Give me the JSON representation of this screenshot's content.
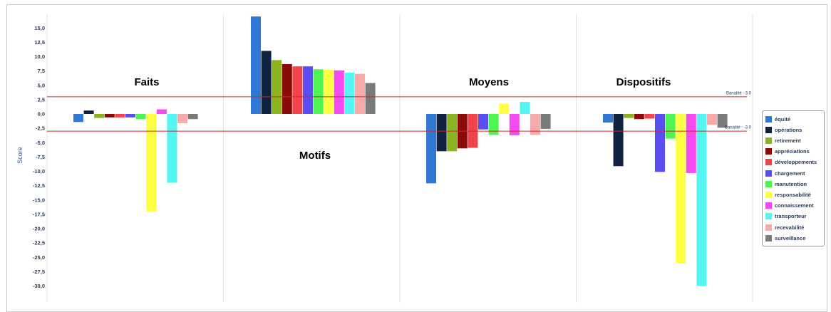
{
  "chart_data": {
    "type": "bar",
    "ylabel": "Score",
    "ylim": [
      -30,
      17
    ],
    "yticks": [
      "15,0",
      "12,5",
      "10,0",
      "7,5",
      "5,0",
      "2,5",
      "0,0",
      "-2,5",
      "-5,0",
      "-7,5",
      "-10,0",
      "-12,5",
      "-15,0",
      "-17,5",
      "-20,0",
      "-22,5",
      "-25,0",
      "-27,5",
      "-30,0"
    ],
    "ytick_values": [
      15,
      12.5,
      10,
      7.5,
      5,
      2.5,
      0,
      -2.5,
      -5,
      -7.5,
      -10,
      -12.5,
      -15,
      -17.5,
      -20,
      -22.5,
      -25,
      -27.5,
      -30
    ],
    "categories": [
      "Faits",
      "Motifs",
      "Moyens",
      "Dispositifs"
    ],
    "grid": "vertical",
    "legend_position": "right",
    "reference_lines": [
      {
        "label": "Banalité : 3.0",
        "value": 3.0,
        "color": "#cc2a2a"
      },
      {
        "label": "Banalité : -3.0",
        "value": -3.0,
        "color": "#cc2a2a"
      }
    ],
    "series": [
      {
        "name": "équité",
        "color": "#3178d4",
        "values": [
          -1.4,
          17.0,
          -12.1,
          -1.5
        ]
      },
      {
        "name": "opérations",
        "color": "#0f2340",
        "values": [
          0.6,
          11.0,
          -6.5,
          -9.1
        ]
      },
      {
        "name": "retirement",
        "color": "#8bb51f",
        "values": [
          -0.7,
          9.4,
          -6.5,
          -0.7
        ]
      },
      {
        "name": "appréciations",
        "color": "#8a0a0a",
        "values": [
          -0.6,
          8.7,
          -6.0,
          -0.9
        ]
      },
      {
        "name": "développements",
        "color": "#f2434b",
        "values": [
          -0.6,
          8.3,
          -5.9,
          -0.8
        ]
      },
      {
        "name": "chargement",
        "color": "#5a4ef2",
        "values": [
          -0.6,
          8.3,
          -2.7,
          -10.1
        ]
      },
      {
        "name": "manutention",
        "color": "#4ef552",
        "values": [
          -0.9,
          7.8,
          -3.6,
          -4.3
        ]
      },
      {
        "name": "responsabilité",
        "color": "#ffff44",
        "values": [
          -17.0,
          7.7,
          1.8,
          -26.0
        ]
      },
      {
        "name": "connaissement",
        "color": "#f54af0",
        "values": [
          0.8,
          7.6,
          -3.7,
          -10.3
        ]
      },
      {
        "name": "transporteur",
        "color": "#55f5f2",
        "values": [
          -12.0,
          7.2,
          2.1,
          -30.0
        ]
      },
      {
        "name": "recevabilité",
        "color": "#f7aaaa",
        "values": [
          -1.6,
          7.0,
          -3.6,
          -1.9
        ]
      },
      {
        "name": "surveillance",
        "color": "#7a7a7a",
        "values": [
          -0.9,
          5.4,
          -2.6,
          -2.4
        ]
      }
    ]
  }
}
